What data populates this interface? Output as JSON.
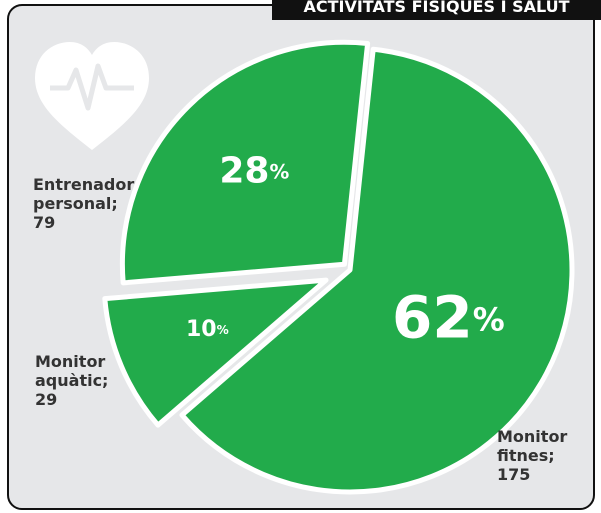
{
  "chart_data": {
    "type": "pie",
    "title": "ACTIVITATS FÍSIQUES I SALUT",
    "categories": [
      "Monitor fitnes;",
      "Monitor aquàtic;",
      "Entrenador personal;"
    ],
    "values": [
      62,
      10,
      28
    ],
    "value_labels": [
      "62%",
      "10%",
      "28%"
    ],
    "counts": [
      175,
      29,
      79
    ],
    "color": "#22ab4b"
  }
}
